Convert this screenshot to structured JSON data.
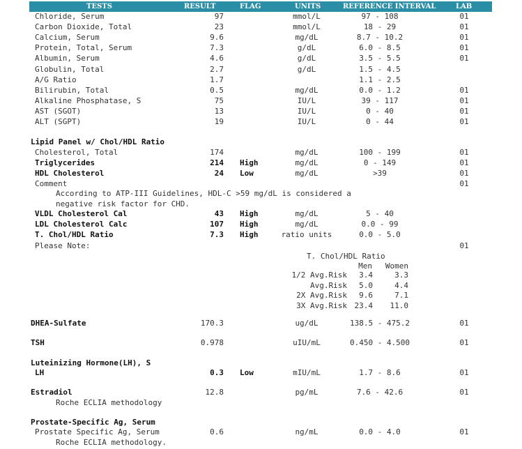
{
  "headers": [
    "TESTS",
    "RESULT",
    "FLAG",
    "UNITS",
    "REFERENCE INTERVAL",
    "LAB"
  ],
  "chem_rows": [
    {
      "test": "Chloride, Serum",
      "result": "97",
      "units": "mmol/L",
      "ref": "97 - 108",
      "lab": "01"
    },
    {
      "test": "Carbon Dioxide, Total",
      "result": "23",
      "units": "mmol/L",
      "ref": "18 - 29",
      "lab": "01"
    },
    {
      "test": "Calcium, Serum",
      "result": "9.6",
      "units": "mg/dL",
      "ref": "8.7 - 10.2",
      "lab": "01"
    },
    {
      "test": "Protein, Total, Serum",
      "result": "7.3",
      "units": "g/dL",
      "ref": "6.0 - 8.5",
      "lab": "01"
    },
    {
      "test": "Albumin, Serum",
      "result": "4.6",
      "units": "g/dL",
      "ref": "3.5 - 5.5",
      "lab": "01"
    },
    {
      "test": "Globulin, Total",
      "result": "2.7",
      "units": "g/dL",
      "ref": "1.5 - 4.5",
      "lab": ""
    },
    {
      "test": "A/G Ratio",
      "result": "1.7",
      "units": "",
      "ref": "1.1 - 2.5",
      "lab": ""
    },
    {
      "test": "Bilirubin, Total",
      "result": "0.5",
      "units": "mg/dL",
      "ref": "0.0 - 1.2",
      "lab": "01"
    },
    {
      "test": "Alkaline Phosphatase, S",
      "result": "75",
      "units": "IU/L",
      "ref": "39 - 117",
      "lab": "01"
    },
    {
      "test": "AST (SGOT)",
      "result": "13",
      "units": "IU/L",
      "ref": "0 - 40",
      "lab": "01"
    },
    {
      "test": "ALT (SGPT)",
      "result": "19",
      "units": "IU/L",
      "ref": "0 - 44",
      "lab": "01"
    }
  ],
  "lipid": {
    "title": "Lipid Panel w/ Chol/HDL Ratio",
    "rows": [
      {
        "test": "Cholesterol, Total",
        "result": "174",
        "flag": "",
        "units": "mg/dL",
        "ref": "100 - 199",
        "lab": "01",
        "bold": false
      },
      {
        "test": "Triglycerides",
        "result": "214",
        "flag": "High",
        "units": "mg/dL",
        "ref": "0 - 149",
        "lab": "01",
        "bold": true
      },
      {
        "test": "HDL Cholesterol",
        "result": "24",
        "flag": "Low",
        "units": "mg/dL",
        "ref": ">39",
        "lab": "01",
        "bold": true
      },
      {
        "test": "Comment",
        "result": "",
        "flag": "",
        "units": "",
        "ref": "",
        "lab": "01",
        "bold": false
      }
    ],
    "comment_line1": "According to ATP-III Guidelines, HDL-C >59 mg/dL is considered a",
    "comment_line2": "negative risk factor for CHD.",
    "rows2": [
      {
        "test": "VLDL Cholesterol Cal",
        "result": "43",
        "flag": "High",
        "units": "mg/dL",
        "ref": "5 - 40",
        "lab": "",
        "bold": true
      },
      {
        "test": "LDL Cholesterol Calc",
        "result": "107",
        "flag": "High",
        "units": "mg/dL",
        "ref": "0.0 - 99",
        "lab": "",
        "bold": true
      },
      {
        "test": "T. Chol/HDL Ratio",
        "result": "7.3",
        "flag": "High",
        "units": "ratio units",
        "ref": "0.0 - 5.0",
        "lab": "",
        "bold": true
      }
    ],
    "please_note": "Please Note:",
    "please_note_lab": "01",
    "risk_title": "T. Chol/HDL Ratio",
    "risk_header_men": "Men",
    "risk_header_women": "Women",
    "risk_rows": [
      {
        "label": "1/2 Avg.Risk",
        "men": "3.4",
        "women": "3.3"
      },
      {
        "label": "Avg.Risk",
        "men": "5.0",
        "women": "4.4"
      },
      {
        "label": "2X Avg.Risk",
        "men": "9.6",
        "women": "7.1"
      },
      {
        "label": "3X Avg.Risk",
        "men": "23.4",
        "women": "11.0"
      }
    ]
  },
  "dhea": {
    "test": "DHEA-Sulfate",
    "result": "170.3",
    "units": "ug/dL",
    "ref": "138.5 - 475.2",
    "lab": "01"
  },
  "tsh": {
    "test": "TSH",
    "result": "0.978",
    "units": "uIU/mL",
    "ref": "0.450 - 4.500",
    "lab": "01"
  },
  "lh": {
    "title": "Luteinizing Hormone(LH), S",
    "test": "LH",
    "result": "0.3",
    "flag": "Low",
    "units": "mIU/mL",
    "ref": "1.7 - 8.6",
    "lab": "01"
  },
  "estradiol": {
    "test": "Estradiol",
    "result": "12.8",
    "units": "pg/mL",
    "ref": "7.6 - 42.6",
    "lab": "01",
    "note": "Roche ECLIA methodology"
  },
  "psa": {
    "title": "Prostate-Specific Ag, Serum",
    "test": "Prostate Specific Ag, Serum",
    "result": "0.6",
    "units": "ng/mL",
    "ref": "0.0 - 4.0",
    "lab": "01",
    "note": "Roche ECLIA methodology."
  }
}
